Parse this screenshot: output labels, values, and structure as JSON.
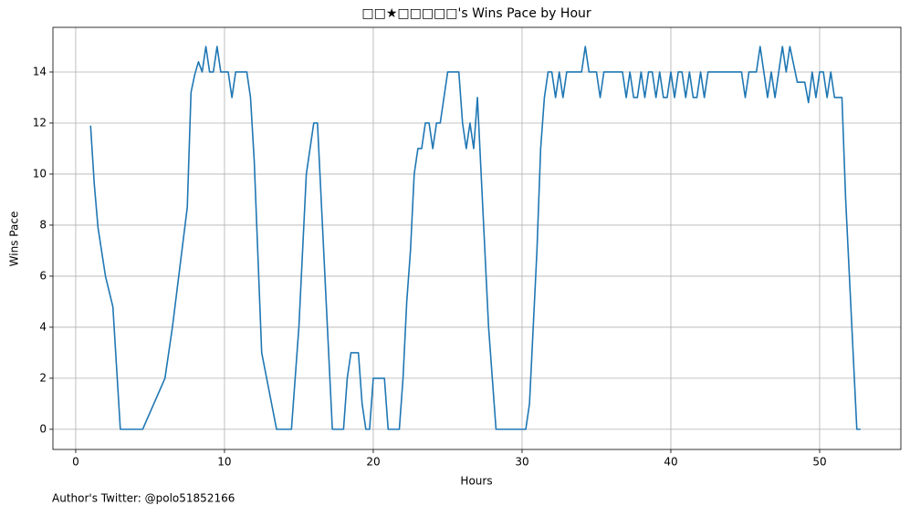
{
  "chart_data": {
    "type": "line",
    "title": "□□★□□□□□'s Wins Pace by Hour",
    "xlabel": "Hours",
    "ylabel": "Wins Pace",
    "footnote": "Author's Twitter: @polo51852166",
    "x": [
      1.0,
      1.25,
      1.5,
      2,
      2.5,
      3,
      4.5,
      6,
      6.5,
      7.5,
      7.75,
      8,
      8.25,
      8.5,
      8.75,
      9,
      9.25,
      9.5,
      9.75,
      10.25,
      10.5,
      10.75,
      11.5,
      11.75,
      12,
      12.5,
      13.5,
      14.5,
      15,
      15.5,
      16,
      16.25,
      17,
      17.25,
      18,
      18.25,
      18.5,
      19,
      19.25,
      19.5,
      19.75,
      20,
      20.75,
      21,
      21.75,
      22,
      22.25,
      22.5,
      22.75,
      23,
      23.25,
      23.5,
      23.75,
      24,
      24.25,
      24.5,
      25,
      25.75,
      26,
      26.25,
      26.5,
      26.75,
      27,
      27.25,
      27.75,
      28.25,
      30.25,
      30.5,
      31,
      31.25,
      31.5,
      31.75,
      32,
      32.25,
      32.5,
      32.75,
      33,
      34,
      34.25,
      34.5,
      35,
      35.25,
      35.5,
      36.75,
      37,
      37.25,
      37.5,
      37.75,
      38,
      38.25,
      38.5,
      38.75,
      39,
      39.25,
      39.5,
      39.75,
      40,
      40.25,
      40.5,
      40.75,
      41,
      41.25,
      41.5,
      41.75,
      42,
      42.25,
      42.5,
      44.75,
      45,
      45.25,
      45.75,
      46,
      46.25,
      46.5,
      46.75,
      47,
      47.25,
      47.5,
      47.75,
      48,
      48.5,
      49,
      49.25,
      49.5,
      49.75,
      50,
      50.25,
      50.5,
      50.75,
      51,
      51.5,
      51.75,
      52.5,
      52.75
    ],
    "series": [
      {
        "name": "Wins Pace",
        "color": "#1f77b4",
        "values": [
          11.9,
          9.6,
          7.9,
          6,
          4.8,
          0,
          0,
          2,
          4,
          8.7,
          13.2,
          13.9,
          14.4,
          14,
          15,
          14,
          14,
          15,
          14,
          14,
          13,
          14,
          14,
          13,
          10.5,
          3,
          0,
          0,
          4,
          10,
          12,
          12,
          3,
          0,
          0,
          2,
          3,
          3,
          1,
          0,
          0,
          2,
          2,
          0,
          0,
          2,
          5,
          7,
          10,
          11,
          11,
          12,
          12,
          11,
          12,
          12,
          14,
          14,
          12,
          11,
          12,
          11,
          13,
          10,
          4,
          0,
          0,
          1,
          7,
          11,
          13,
          14,
          14,
          13,
          14,
          13,
          14,
          14,
          15,
          14,
          14,
          13,
          14,
          14,
          13,
          14,
          13,
          13,
          14,
          13,
          14,
          14,
          13,
          14,
          13,
          13,
          14,
          13,
          14,
          14,
          13,
          14,
          13,
          13,
          14,
          13,
          14,
          14,
          13,
          14,
          14,
          15,
          14,
          13,
          14,
          13,
          14,
          15,
          14,
          15,
          13.6,
          13.6,
          12.8,
          14,
          13,
          14,
          14,
          13,
          14,
          13,
          13,
          9,
          0,
          0
        ]
      }
    ],
    "xlim": [
      -1.53,
      55.46
    ],
    "ylim": [
      -0.79,
      15.75
    ],
    "xticks": [
      0,
      10,
      20,
      30,
      40,
      50
    ],
    "yticks": [
      0,
      2,
      4,
      6,
      8,
      10,
      12,
      14
    ],
    "grid": true
  }
}
